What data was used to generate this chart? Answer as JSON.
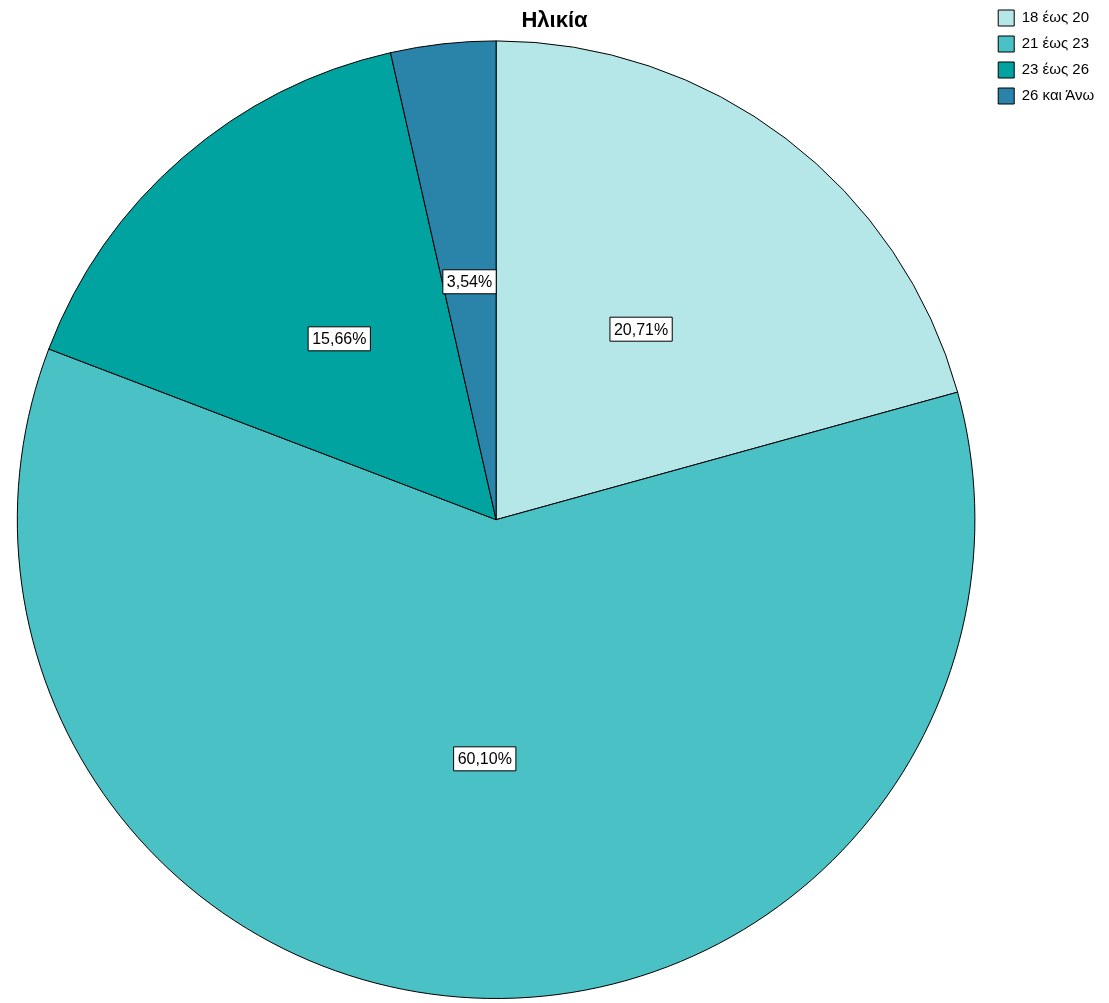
{
  "chart_data": {
    "type": "pie",
    "title": "Ηλικία",
    "categories": [
      "18 έως 20",
      "21 έως 23",
      "23 έως 26",
      "26 και Άνω"
    ],
    "values": [
      20.71,
      60.1,
      15.66,
      3.54
    ],
    "value_labels": [
      "20,71%",
      "60,10%",
      "15,66%",
      "3,54%"
    ],
    "colors": [
      "#b5e6e8",
      "#4ac1c5",
      "#00a39f",
      "#2a83a9"
    ],
    "legend": "top right"
  }
}
